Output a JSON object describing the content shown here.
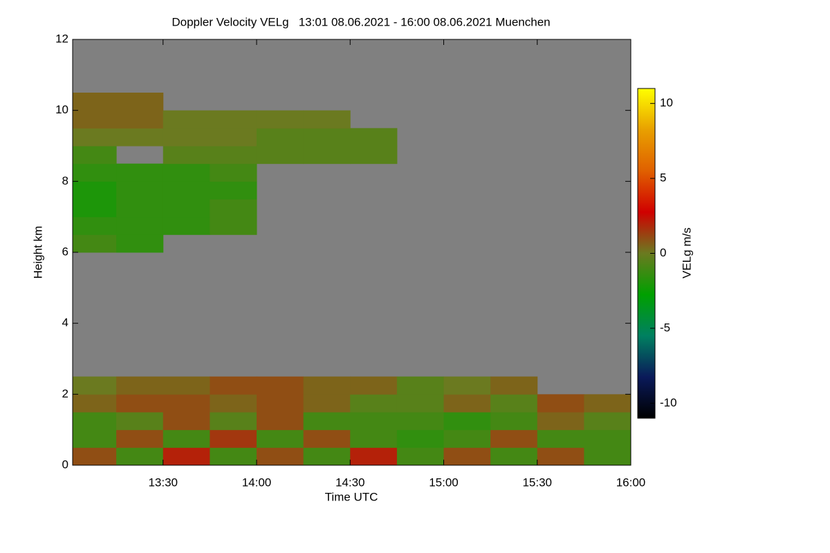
{
  "chart_data": {
    "type": "heatmap",
    "title": "Doppler Velocity VELg   13:01 08.06.2021 - 16:00 08.06.2021 Muenchen",
    "x_label": "Time UTC",
    "y_label": "Height km",
    "colorbar_label": "VELg m/s",
    "xlim": [
      13.0167,
      16.0
    ],
    "xticks": [
      {
        "value": 13.5,
        "label": "13:30"
      },
      {
        "value": 14.0,
        "label": "14:00"
      },
      {
        "value": 14.5,
        "label": "14:30"
      },
      {
        "value": 15.0,
        "label": "15:00"
      },
      {
        "value": 15.5,
        "label": "15:30"
      },
      {
        "value": 16.0,
        "label": "16:00"
      }
    ],
    "ylim": [
      0,
      12
    ],
    "yticks": [
      0,
      2,
      4,
      6,
      8,
      10,
      12
    ],
    "zlim": [
      -11,
      11
    ],
    "zticks": [
      10,
      5,
      0,
      -5,
      -10
    ],
    "background_color": "#808080",
    "colormap": [
      "#000000",
      "#0a1a5a",
      "#008060",
      "#00a000",
      "#6b7a20",
      "#d00000",
      "#e06000",
      "#e8a000",
      "#ffff00"
    ],
    "x": [
      13.125,
      13.375,
      13.625,
      13.875,
      14.125,
      14.375,
      14.625,
      14.875,
      15.125,
      15.375,
      15.625,
      15.875
    ],
    "y": [
      0.25,
      0.75,
      1.25,
      1.75,
      2.25,
      2.75,
      3.25,
      3.75,
      4.25,
      4.75,
      5.25,
      5.75,
      6.25,
      6.75,
      7.25,
      7.75,
      8.25,
      8.75,
      9.25,
      9.75,
      10.25,
      10.75,
      11.25,
      11.75
    ],
    "z": [
      [
        1,
        -1,
        2,
        -1,
        1,
        -1,
        2,
        -1,
        1,
        -1,
        1,
        -1
      ],
      [
        -1,
        1,
        -1,
        1.5,
        -1,
        1,
        -1,
        -1.5,
        -1,
        1,
        -1,
        -1
      ],
      [
        -1,
        -0.5,
        1,
        -0.5,
        1,
        -1,
        -1,
        -1,
        -1.5,
        -1,
        0.5,
        -0.5
      ],
      [
        0.5,
        1,
        1,
        0.5,
        1,
        0.5,
        -0.5,
        -0.5,
        0.5,
        -0.5,
        1,
        0.5
      ],
      [
        0,
        0.5,
        0.5,
        1,
        1,
        0.5,
        0.5,
        -0.5,
        0,
        0.5,
        null,
        null
      ],
      [
        null,
        null,
        null,
        null,
        null,
        null,
        null,
        null,
        null,
        null,
        null,
        null
      ],
      [
        null,
        null,
        null,
        null,
        null,
        null,
        null,
        null,
        null,
        null,
        null,
        null
      ],
      [
        null,
        null,
        null,
        null,
        null,
        null,
        null,
        null,
        null,
        null,
        null,
        null
      ],
      [
        null,
        null,
        null,
        null,
        null,
        null,
        null,
        null,
        null,
        null,
        null,
        null
      ],
      [
        null,
        null,
        null,
        null,
        null,
        null,
        null,
        null,
        null,
        null,
        null,
        null
      ],
      [
        null,
        null,
        null,
        null,
        null,
        null,
        null,
        null,
        null,
        null,
        null,
        null
      ],
      [
        null,
        null,
        null,
        null,
        null,
        null,
        null,
        null,
        null,
        null,
        null,
        null
      ],
      [
        -1,
        -1.5,
        null,
        null,
        null,
        null,
        null,
        null,
        null,
        null,
        null,
        null
      ],
      [
        -1.5,
        -1.5,
        -1.5,
        -1,
        null,
        null,
        null,
        null,
        null,
        null,
        null,
        null
      ],
      [
        -2,
        -1.5,
        -1.5,
        -1,
        null,
        null,
        null,
        null,
        null,
        null,
        null,
        null
      ],
      [
        -2,
        -1.5,
        -1.5,
        -1.5,
        null,
        null,
        null,
        null,
        null,
        null,
        null,
        null
      ],
      [
        -1.5,
        -1.5,
        -1.5,
        -1,
        null,
        null,
        null,
        null,
        null,
        null,
        null,
        null
      ],
      [
        -1,
        null,
        -0.5,
        -0.5,
        -0.5,
        -0.5,
        -0.5,
        null,
        null,
        null,
        null,
        null
      ],
      [
        0,
        0,
        0,
        0,
        -0.5,
        -0.5,
        -0.5,
        null,
        null,
        null,
        null,
        null
      ],
      [
        0.5,
        0.5,
        0,
        0,
        0,
        0,
        null,
        null,
        null,
        null,
        null,
        null
      ],
      [
        0.5,
        0.5,
        null,
        null,
        null,
        null,
        null,
        null,
        null,
        null,
        null,
        null
      ],
      [
        null,
        null,
        null,
        null,
        null,
        null,
        null,
        null,
        null,
        null,
        null,
        null
      ],
      [
        null,
        null,
        null,
        null,
        null,
        null,
        null,
        null,
        null,
        null,
        null,
        null
      ],
      [
        null,
        null,
        null,
        null,
        null,
        null,
        null,
        null,
        null,
        null,
        null,
        null
      ]
    ]
  }
}
